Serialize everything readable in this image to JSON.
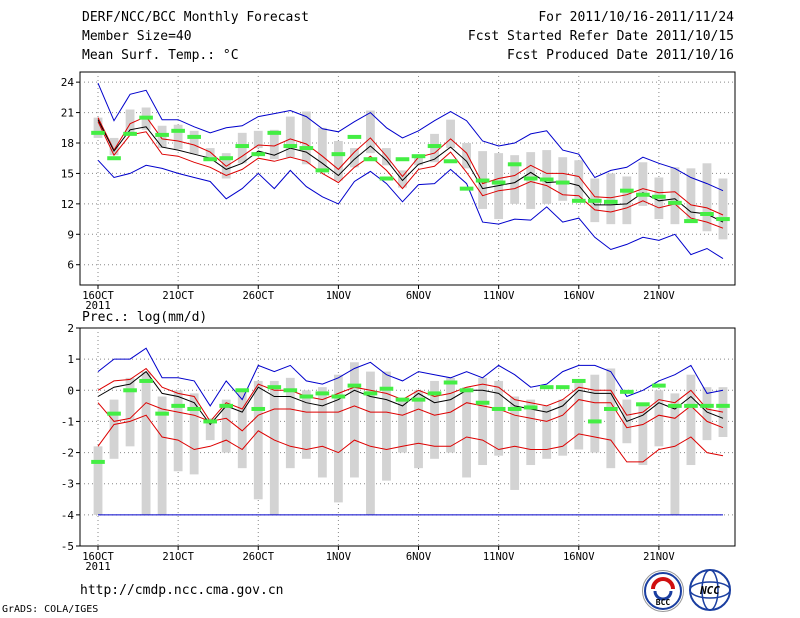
{
  "header": {
    "title": "DERF/NCC/BCC Monthly Forecast",
    "member_size": "Member Size=40",
    "variable": "Mean Surf. Temp.: °C",
    "period": "For 2011/10/16-2011/11/24",
    "started": "Fcst Started Refer Date 2011/10/15",
    "produced": "Fcst Produced Date 2011/10/16"
  },
  "footer": {
    "url": "http://cmdp.ncc.cma.gov.cn",
    "credit": "GrADS: COLA/IGES",
    "logo_bcc": "BCC",
    "logo_ncc": "NCC"
  },
  "colors": {
    "envelope": "#0000cc",
    "spread": "#dd0000",
    "mean": "#000000",
    "member_box": "#d3d3d3",
    "median": "#44ee44",
    "grid": "#888888"
  },
  "chart_data": [
    {
      "type": "box-ensemble",
      "title": "Mean Surf. Temp.: °C",
      "x_tick_labels": [
        "16OCT",
        "21OCT",
        "26OCT",
        "1NOV",
        "6NOV",
        "11NOV",
        "16NOV",
        "21NOV"
      ],
      "x_year_label": "2011",
      "ylim": [
        4,
        25
      ],
      "y_ticks": [
        6,
        9,
        12,
        15,
        18,
        21,
        24
      ],
      "days": 40,
      "series": [
        {
          "name": "max",
          "values": [
            23.9,
            20.2,
            22.8,
            23.2,
            20.3,
            20.3,
            19.6,
            19.0,
            19.5,
            19.7,
            20.6,
            20.9,
            21.2,
            20.6,
            19.4,
            19.1,
            20.1,
            21.0,
            19.5,
            18.5,
            19.2,
            20.2,
            21.1,
            20.2,
            18.2,
            17.7,
            18.0,
            18.9,
            19.2,
            17.3,
            16.9,
            14.6,
            15.3,
            15.6,
            16.6,
            16.0,
            15.5,
            14.6,
            14.0,
            13.3
          ]
        },
        {
          "name": "upper",
          "values": [
            20.5,
            17.3,
            19.9,
            20.6,
            18.4,
            18.2,
            17.8,
            17.1,
            15.7,
            16.7,
            17.8,
            17.7,
            18.4,
            17.9,
            16.7,
            15.4,
            17.1,
            18.5,
            16.7,
            14.7,
            16.6,
            17.0,
            18.4,
            17.0,
            14.0,
            14.5,
            14.8,
            15.8,
            15.0,
            15.0,
            14.7,
            12.7,
            12.6,
            12.9,
            13.5,
            13.1,
            13.2,
            11.9,
            11.6,
            10.9
          ]
        },
        {
          "name": "mean",
          "values": [
            20.3,
            17.2,
            19.3,
            19.6,
            17.6,
            17.3,
            16.9,
            16.5,
            15.4,
            16.0,
            17.2,
            16.8,
            17.5,
            17.1,
            16.0,
            14.8,
            16.4,
            17.7,
            16.3,
            14.3,
            15.9,
            16.4,
            17.6,
            16.2,
            13.5,
            13.8,
            14.1,
            15.1,
            14.1,
            14.2,
            13.8,
            11.9,
            11.9,
            12.0,
            13.1,
            12.3,
            12.5,
            11.2,
            11.0,
            10.2
          ]
        },
        {
          "name": "lower",
          "values": [
            20.1,
            16.8,
            18.8,
            19.1,
            16.9,
            16.7,
            16.1,
            15.6,
            14.8,
            15.4,
            16.5,
            16.2,
            16.6,
            16.2,
            15.0,
            14.1,
            15.6,
            16.7,
            15.3,
            13.5,
            15.4,
            15.7,
            17.1,
            15.1,
            12.8,
            13.3,
            13.5,
            14.2,
            13.8,
            12.9,
            12.8,
            11.4,
            11.2,
            11.6,
            12.3,
            11.6,
            12.0,
            10.6,
            10.2,
            9.6
          ]
        },
        {
          "name": "min",
          "values": [
            16.3,
            14.6,
            15.0,
            15.8,
            15.5,
            15.0,
            14.6,
            14.2,
            12.5,
            13.5,
            15.0,
            13.5,
            15.3,
            13.7,
            12.7,
            12.0,
            14.2,
            15.2,
            14.0,
            12.2,
            13.9,
            14.0,
            15.4,
            14.0,
            10.2,
            10.0,
            10.5,
            10.4,
            11.7,
            10.2,
            10.6,
            8.7,
            7.5,
            8.0,
            8.7,
            8.4,
            9.0,
            7.0,
            7.6,
            6.6
          ]
        },
        {
          "name": "box_low",
          "values": [
            18.5,
            16.8,
            18.9,
            19.3,
            17.5,
            17.4,
            16.9,
            16.4,
            14.5,
            16.0,
            17.5,
            16.4,
            16.6,
            15.9,
            15.3,
            14.3,
            15.6,
            17.0,
            15.8,
            13.6,
            15.8,
            16.1,
            17.5,
            15.5,
            11.5,
            10.5,
            12.0,
            11.5,
            12.0,
            12.3,
            12.5,
            10.2,
            10.0,
            10.0,
            11.8,
            10.5,
            10.0,
            10.2,
            9.3,
            8.5
          ]
        },
        {
          "name": "box_high",
          "values": [
            20.5,
            18.5,
            21.3,
            21.5,
            19.7,
            19.8,
            19.2,
            17.5,
            17.0,
            19.0,
            19.2,
            19.3,
            20.6,
            21.1,
            19.5,
            18.2,
            17.5,
            21.2,
            17.5,
            15.3,
            16.8,
            18.9,
            20.3,
            18.0,
            17.2,
            17.0,
            16.8,
            17.1,
            17.3,
            16.6,
            16.3,
            14.5,
            15.0,
            14.7,
            16.1,
            14.6,
            15.6,
            15.5,
            16.0,
            14.5
          ]
        },
        {
          "name": "median",
          "values": [
            19.0,
            16.5,
            18.9,
            20.5,
            18.8,
            19.2,
            18.6,
            16.4,
            16.5,
            17.7,
            16.9,
            19.0,
            17.7,
            17.5,
            15.3,
            16.9,
            18.6,
            16.4,
            14.5,
            16.4,
            16.7,
            17.7,
            16.2,
            13.5,
            14.3,
            14.1,
            15.9,
            14.5,
            14.4,
            14.1,
            12.3,
            12.3,
            12.2,
            13.3,
            12.9,
            12.7,
            12.1,
            10.3,
            11.0,
            10.5
          ]
        }
      ]
    },
    {
      "type": "box-ensemble",
      "title": "Prec.: log(mm/d)",
      "x_tick_labels": [
        "16OCT",
        "21OCT",
        "26OCT",
        "1NOV",
        "6NOV",
        "11NOV",
        "16NOV",
        "21NOV"
      ],
      "x_year_label": "2011",
      "ylim": [
        -5,
        2
      ],
      "y_ticks": [
        -5,
        -4,
        -3,
        -2,
        -1,
        0,
        1,
        2
      ],
      "days": 40,
      "series": [
        {
          "name": "max",
          "values": [
            0.6,
            1.0,
            1.0,
            1.35,
            0.4,
            0.4,
            0.3,
            -0.5,
            0.3,
            -0.3,
            0.8,
            0.6,
            0.8,
            0.3,
            0.2,
            0.4,
            0.7,
            0.9,
            0.5,
            0.3,
            0.6,
            0.5,
            0.4,
            0.6,
            0.4,
            0.8,
            0.5,
            0.1,
            0.2,
            0.6,
            0.8,
            0.8,
            0.6,
            -0.2,
            0.0,
            0.3,
            0.5,
            0.8,
            -0.1,
            0.0
          ]
        },
        {
          "name": "upper",
          "values": [
            0.0,
            0.3,
            0.35,
            0.7,
            0.1,
            -0.1,
            -0.2,
            -1.0,
            -0.4,
            -0.6,
            0.2,
            0.0,
            0.0,
            -0.2,
            -0.3,
            -0.1,
            0.1,
            0.0,
            -0.1,
            -0.3,
            0.0,
            -0.2,
            -0.1,
            0.1,
            0.2,
            0.1,
            -0.3,
            -0.4,
            -0.5,
            -0.3,
            0.1,
            0.0,
            0.0,
            -0.8,
            -0.7,
            -0.3,
            -0.4,
            0.0,
            -0.6,
            -0.7
          ]
        },
        {
          "name": "mean",
          "values": [
            -0.2,
            0.1,
            0.2,
            0.6,
            -0.1,
            -0.2,
            -0.4,
            -1.1,
            -0.5,
            -0.7,
            0.1,
            -0.2,
            -0.2,
            -0.4,
            -0.5,
            -0.3,
            0.0,
            -0.2,
            -0.3,
            -0.5,
            -0.1,
            -0.4,
            -0.3,
            0.0,
            0.0,
            -0.1,
            -0.5,
            -0.6,
            -0.7,
            -0.5,
            0.0,
            -0.1,
            -0.1,
            -1.0,
            -0.8,
            -0.4,
            -0.6,
            -0.2,
            -0.7,
            -0.9
          ]
        },
        {
          "name": "lower",
          "values": [
            -0.4,
            -1.0,
            -0.9,
            -0.4,
            -0.6,
            -0.7,
            -0.8,
            -1.0,
            -0.9,
            -1.3,
            -0.8,
            -0.6,
            -0.6,
            -0.7,
            -0.7,
            -0.7,
            -0.5,
            -0.7,
            -0.7,
            -0.8,
            -0.6,
            -0.8,
            -0.7,
            -0.4,
            -0.5,
            -0.6,
            -0.8,
            -0.9,
            -1.0,
            -0.8,
            -0.3,
            -0.4,
            -0.4,
            -1.2,
            -1.1,
            -0.8,
            -0.9,
            -0.5,
            -1.0,
            -1.2
          ]
        },
        {
          "name": "min",
          "values": [
            -4.0,
            -4.0,
            -4.0,
            -4.0,
            -4.0,
            -4.0,
            -4.0,
            -4.0,
            -4.0,
            -4.0,
            -4.0,
            -4.0,
            -4.0,
            -4.0,
            -4.0,
            -4.0,
            -4.0,
            -4.0,
            -4.0,
            -4.0,
            -4.0,
            -4.0,
            -4.0,
            -4.0,
            -4.0,
            -4.0,
            -4.0,
            -4.0,
            -4.0,
            -4.0,
            -4.0,
            -4.0,
            -4.0,
            -4.0,
            -4.0,
            -4.0,
            -4.0,
            -4.0,
            -4.0,
            -4.0
          ]
        },
        {
          "name": "lower_tail",
          "values": [
            -1.8,
            -1.1,
            -1.0,
            -0.8,
            -1.5,
            -1.6,
            -1.9,
            -1.8,
            -1.6,
            -1.9,
            -1.3,
            -1.6,
            -1.8,
            -1.9,
            -1.8,
            -2.0,
            -1.6,
            -1.8,
            -1.9,
            -1.8,
            -1.7,
            -1.8,
            -1.8,
            -1.5,
            -1.6,
            -1.9,
            -1.8,
            -1.9,
            -1.9,
            -1.8,
            -1.4,
            -1.5,
            -1.6,
            -2.3,
            -2.3,
            -1.9,
            -1.8,
            -1.5,
            -2.0,
            -2.1
          ]
        },
        {
          "name": "box_low",
          "values": [
            -4.0,
            -2.2,
            -1.8,
            -4.0,
            -4.0,
            -2.6,
            -2.7,
            -1.6,
            -2.0,
            -2.5,
            -3.5,
            -4.0,
            -2.5,
            -2.2,
            -2.8,
            -3.6,
            -2.8,
            -4.0,
            -2.9,
            -2.0,
            -2.5,
            -2.2,
            -2.0,
            -2.8,
            -2.4,
            -2.1,
            -3.2,
            -2.4,
            -2.2,
            -2.1,
            -1.9,
            -2.0,
            -2.5,
            -1.7,
            -2.4,
            -1.8,
            -4.0,
            -2.4,
            -1.6,
            -1.5
          ]
        },
        {
          "name": "box_high",
          "values": [
            -1.8,
            -0.3,
            0.4,
            0.6,
            -0.2,
            0.0,
            -0.1,
            -0.9,
            -0.3,
            0.0,
            0.3,
            0.3,
            0.4,
            0.0,
            0.1,
            0.5,
            0.9,
            0.6,
            0.6,
            -0.3,
            0.0,
            0.3,
            0.4,
            0.1,
            0.4,
            0.3,
            -0.2,
            -0.3,
            -0.5,
            -0.3,
            0.3,
            0.5,
            0.7,
            -0.3,
            -0.4,
            0.0,
            -0.1,
            0.5,
            0.1,
            0.1
          ]
        },
        {
          "name": "median",
          "values": [
            -2.3,
            -0.75,
            0.0,
            0.3,
            -0.75,
            -0.5,
            -0.6,
            -1.0,
            -0.5,
            0.0,
            -0.6,
            0.1,
            0.0,
            -0.2,
            -0.1,
            -0.2,
            0.15,
            -0.1,
            0.05,
            -0.3,
            -0.3,
            -0.1,
            0.25,
            0.0,
            -0.4,
            -0.6,
            -0.6,
            -0.55,
            0.1,
            0.1,
            0.3,
            -1.0,
            -0.6,
            -0.05,
            -0.45,
            0.15,
            -0.5,
            -0.5,
            -0.5,
            -0.5
          ]
        }
      ]
    }
  ]
}
